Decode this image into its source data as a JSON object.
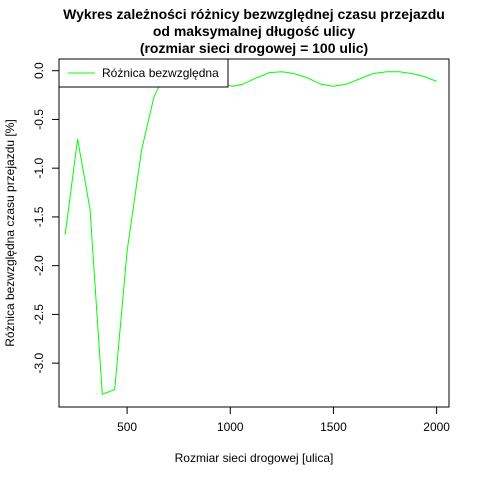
{
  "chart_data": {
    "type": "line",
    "title_lines": [
      "Wykres zależności różnicy bezwzględnej czasu przejazdu",
      "od maksymalnej długość ulicy",
      "(rozmiar sieci drogowej = 100 ulic)"
    ],
    "xlabel": "Rozmiar sieci drogowej [ulica]",
    "ylabel": "Różnica bezwzględna czasu przejazdu [%]",
    "xlim": [
      170,
      2060
    ],
    "ylim": [
      -3.45,
      0.12
    ],
    "xticks": [
      500,
      1000,
      1500,
      2000
    ],
    "xtick_labels": [
      "500",
      "1000",
      "1500",
      "2000"
    ],
    "yticks": [
      0.0,
      -0.5,
      -1.0,
      -1.5,
      -2.0,
      -2.5,
      -3.0
    ],
    "ytick_labels": [
      "0.0",
      "-0.5",
      "-1.0",
      "-1.5",
      "-2.0",
      "-2.5",
      "-3.0"
    ],
    "legend_position": "top-left",
    "grid": false,
    "series": [
      {
        "name": "Różnica bezwzględna",
        "color": "#00ff00",
        "x": [
          200,
          260,
          320,
          380,
          440,
          500,
          570,
          630,
          690,
          750,
          800,
          860,
          920,
          960,
          1010,
          1060,
          1120,
          1190,
          1250,
          1310,
          1370,
          1440,
          1500,
          1560,
          1620,
          1690,
          1760,
          1820,
          1880,
          1940,
          2000
        ],
        "y": [
          -1.68,
          -0.7,
          -1.42,
          -3.32,
          -3.27,
          -1.85,
          -0.82,
          -0.27,
          -0.01,
          -0.01,
          -0.01,
          -0.02,
          -0.1,
          -0.13,
          -0.16,
          -0.14,
          -0.08,
          -0.02,
          -0.01,
          -0.03,
          -0.07,
          -0.14,
          -0.16,
          -0.14,
          -0.09,
          -0.03,
          -0.01,
          -0.01,
          -0.03,
          -0.06,
          -0.11
        ]
      }
    ]
  }
}
